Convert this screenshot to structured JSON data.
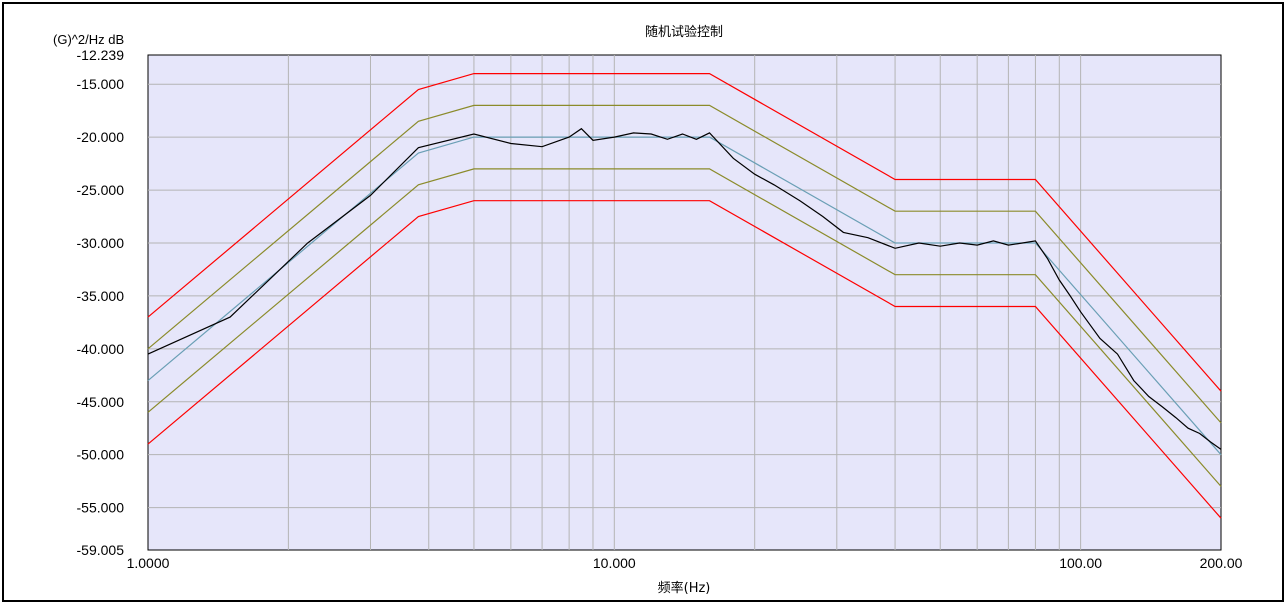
{
  "chart_data": {
    "type": "line",
    "title": "随机试验控制",
    "xlabel": "频率(Hz)",
    "ylabel": "(G)^2/Hz  dB",
    "xscale": "log",
    "xlim": [
      1,
      200
    ],
    "ylim": [
      -59.005,
      -12.239
    ],
    "grid": true,
    "x_tick_labels": [
      "1.0000",
      "10.000",
      "100.00",
      "200.00"
    ],
    "x_tick_values": [
      1,
      10,
      100,
      200
    ],
    "y_tick_labels": [
      "-12.239",
      "-15.000",
      "-20.000",
      "-25.000",
      "-30.000",
      "-35.000",
      "-40.000",
      "-45.000",
      "-50.000",
      "-55.000",
      "-59.005"
    ],
    "y_tick_values": [
      -12.239,
      -15,
      -20,
      -25,
      -30,
      -35,
      -40,
      -45,
      -50,
      -55,
      -59.005
    ],
    "series": [
      {
        "color": "#ff0000",
        "x": [
          1,
          3.8,
          5,
          16,
          40,
          80,
          200
        ],
        "y": [
          -37,
          -15.5,
          -14,
          -14,
          -24,
          -24,
          -44
        ]
      },
      {
        "color": "#8b8b2a",
        "x": [
          1,
          3.8,
          5,
          16,
          40,
          80,
          200
        ],
        "y": [
          -40,
          -18.5,
          -17,
          -17,
          -27,
          -27,
          -47
        ]
      },
      {
        "color": "#6a9fb5",
        "x": [
          1,
          3.8,
          5,
          16,
          40,
          80,
          200
        ],
        "y": [
          -43,
          -21.5,
          -20,
          -20,
          -30,
          -30,
          -50
        ]
      },
      {
        "color": "#8b8b2a",
        "x": [
          1,
          3.8,
          5,
          16,
          40,
          80,
          200
        ],
        "y": [
          -46,
          -24.5,
          -23,
          -23,
          -33,
          -33,
          -53
        ]
      },
      {
        "color": "#ff0000",
        "x": [
          1,
          3.8,
          5,
          16,
          40,
          80,
          200
        ],
        "y": [
          -49,
          -27.5,
          -26,
          -26,
          -36,
          -36,
          -56
        ]
      },
      {
        "color": "#000000",
        "x": [
          1,
          1.5,
          2.2,
          3,
          3.8,
          5,
          6,
          7,
          8,
          8.5,
          9,
          10,
          11,
          12,
          13,
          14,
          15,
          16,
          18,
          20,
          22,
          25,
          28,
          31,
          35,
          40,
          45,
          50,
          55,
          60,
          65,
          70,
          75,
          80,
          85,
          90,
          95,
          100,
          110,
          120,
          130,
          140,
          150,
          160,
          170,
          180,
          190,
          200
        ],
        "y": [
          -40.5,
          -37,
          -30,
          -25.5,
          -21,
          -19.7,
          -20.6,
          -20.9,
          -20,
          -19.2,
          -20.3,
          -20,
          -19.6,
          -19.7,
          -20.2,
          -19.7,
          -20.2,
          -19.6,
          -22,
          -23.5,
          -24.5,
          -26,
          -27.5,
          -29,
          -29.5,
          -30.5,
          -30,
          -30.3,
          -30,
          -30.2,
          -29.8,
          -30.2,
          -30,
          -29.8,
          -31.5,
          -33.5,
          -35,
          -36.5,
          -39,
          -40.5,
          -43,
          -44.5,
          -45.5,
          -46.5,
          -47.5,
          -48,
          -48.8,
          -49.5
        ]
      }
    ]
  }
}
